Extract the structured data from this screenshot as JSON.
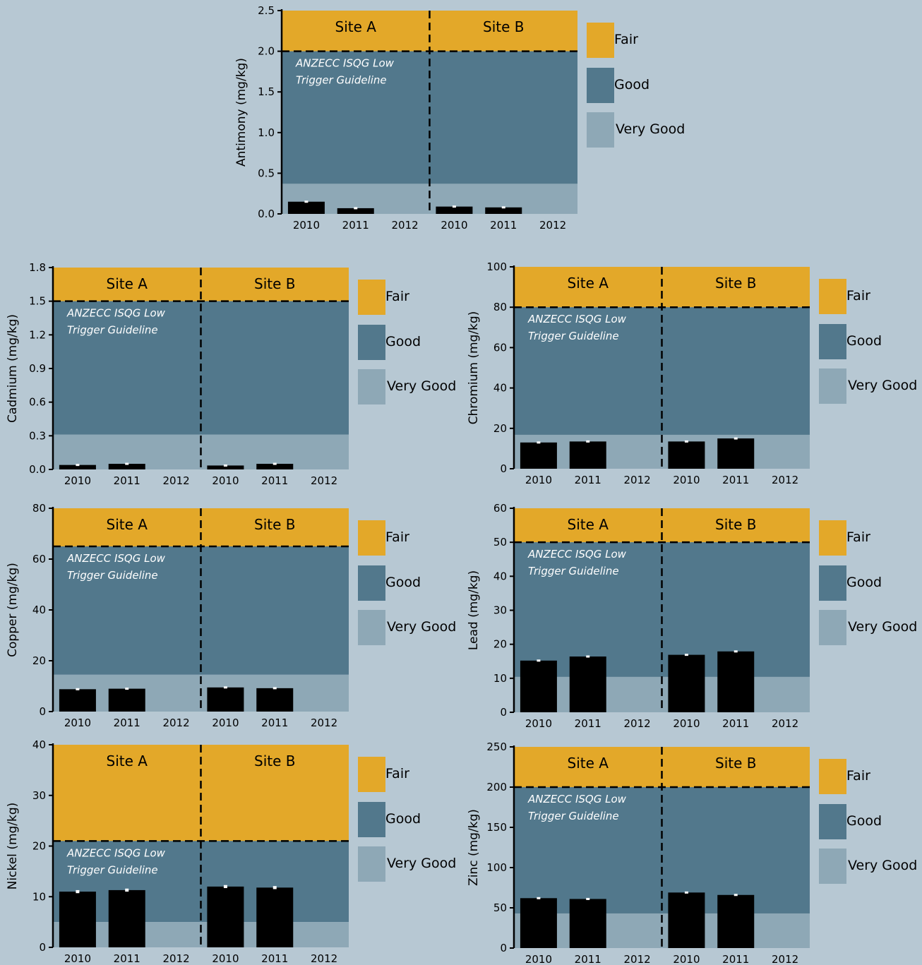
{
  "colors": {
    "background": "#b7c8d3",
    "fair": "#e3a829",
    "good": "#52788c",
    "very_good": "#8ea8b6",
    "bar": "#000000",
    "error_bar": "#ffffff"
  },
  "legend": {
    "fair": "Fair",
    "good": "Good",
    "very_good": "Very Good"
  },
  "guideline_label": [
    "ANZECC ISQG Low",
    "Trigger Guideline"
  ],
  "chart_data": [
    {
      "type": "bar",
      "ylabel": "Antimony (mg/kg)",
      "ylim": [
        0,
        2.5
      ],
      "yticks": [
        "0.0",
        "0.5",
        "1.0",
        "1.5",
        "2.0",
        "2.5"
      ],
      "sites": [
        "Site A",
        "Site B"
      ],
      "categories": [
        "2010",
        "2011",
        "2012"
      ],
      "series": [
        {
          "site": "Site A",
          "values": [
            0.15,
            0.07,
            null
          ],
          "errors": [
            0.01,
            0.01,
            null
          ]
        },
        {
          "site": "Site B",
          "values": [
            0.09,
            0.08,
            null
          ],
          "errors": [
            0.005,
            0.005,
            null
          ]
        }
      ],
      "thresholds": {
        "very_good_max": 0.37,
        "good_max": 2.0
      },
      "guideline": 2.0
    },
    {
      "type": "bar",
      "ylabel": "Cadmium (mg/kg)",
      "ylim": [
        0,
        1.8
      ],
      "yticks": [
        "0.0",
        "0.3",
        "0.6",
        "0.9",
        "1.2",
        "1.5",
        "1.8"
      ],
      "sites": [
        "Site A",
        "Site B"
      ],
      "categories": [
        "2010",
        "2011",
        "2012"
      ],
      "series": [
        {
          "site": "Site A",
          "values": [
            0.04,
            0.05,
            null
          ],
          "errors": [
            0.003,
            0.003,
            null
          ]
        },
        {
          "site": "Site B",
          "values": [
            0.035,
            0.05,
            null
          ],
          "errors": [
            0.003,
            0.003,
            null
          ]
        }
      ],
      "thresholds": {
        "very_good_max": 0.31,
        "good_max": 1.5
      },
      "guideline": 1.5
    },
    {
      "type": "bar",
      "ylabel": "Chromium (mg/kg)",
      "ylim": [
        0,
        100
      ],
      "yticks": [
        "0",
        "20",
        "40",
        "60",
        "80",
        "100"
      ],
      "sites": [
        "Site A",
        "Site B"
      ],
      "categories": [
        "2010",
        "2011",
        "2012"
      ],
      "series": [
        {
          "site": "Site A",
          "values": [
            13,
            13.5,
            null
          ],
          "errors": [
            0.4,
            0.4,
            null
          ]
        },
        {
          "site": "Site B",
          "values": [
            13.5,
            15,
            null
          ],
          "errors": [
            0.4,
            0.4,
            null
          ]
        }
      ],
      "thresholds": {
        "very_good_max": 16.8,
        "good_max": 80
      },
      "guideline": 80
    },
    {
      "type": "bar",
      "ylabel": "Copper (mg/kg)",
      "ylim": [
        0,
        80
      ],
      "yticks": [
        "0",
        "20",
        "40",
        "60",
        "80"
      ],
      "sites": [
        "Site A",
        "Site B"
      ],
      "categories": [
        "2010",
        "2011",
        "2012"
      ],
      "series": [
        {
          "site": "Site A",
          "values": [
            8.8,
            9,
            null
          ],
          "errors": [
            0.3,
            0.3,
            null
          ]
        },
        {
          "site": "Site B",
          "values": [
            9.5,
            9.2,
            null
          ],
          "errors": [
            0.3,
            0.3,
            null
          ]
        }
      ],
      "thresholds": {
        "very_good_max": 14.5,
        "good_max": 65
      },
      "guideline": 65
    },
    {
      "type": "bar",
      "ylabel": "Lead (mg/kg)",
      "ylim": [
        0,
        60
      ],
      "yticks": [
        "0",
        "10",
        "20",
        "30",
        "40",
        "50",
        "60"
      ],
      "sites": [
        "Site A",
        "Site B"
      ],
      "categories": [
        "2010",
        "2011",
        "2012"
      ],
      "series": [
        {
          "site": "Site A",
          "values": [
            15.2,
            16.4,
            null
          ],
          "errors": [
            0.3,
            0.3,
            null
          ]
        },
        {
          "site": "Site B",
          "values": [
            16.9,
            17.9,
            null
          ],
          "errors": [
            0.3,
            0.3,
            null
          ]
        }
      ],
      "thresholds": {
        "very_good_max": 10.4,
        "good_max": 50
      },
      "guideline": 50
    },
    {
      "type": "bar",
      "ylabel": "Nickel (mg/kg)",
      "ylim": [
        0,
        40
      ],
      "yticks": [
        "0",
        "10",
        "20",
        "30",
        "40"
      ],
      "sites": [
        "Site A",
        "Site B"
      ],
      "categories": [
        "2010",
        "2011",
        "2012"
      ],
      "series": [
        {
          "site": "Site A",
          "values": [
            11,
            11.3,
            null
          ],
          "errors": [
            0.3,
            0.3,
            null
          ]
        },
        {
          "site": "Site B",
          "values": [
            12,
            11.8,
            null
          ],
          "errors": [
            0.3,
            0.3,
            null
          ]
        }
      ],
      "thresholds": {
        "very_good_max": 5,
        "good_max": 21
      },
      "guideline": 21
    },
    {
      "type": "bar",
      "ylabel": "Zinc  (mg/kg)",
      "ylim": [
        0,
        250
      ],
      "yticks": [
        "0",
        "50",
        "100",
        "150",
        "200",
        "250"
      ],
      "sites": [
        "Site A",
        "Site B"
      ],
      "categories": [
        "2010",
        "2011",
        "2012"
      ],
      "series": [
        {
          "site": "Site A",
          "values": [
            62,
            61,
            null
          ],
          "errors": [
            1,
            1,
            null
          ]
        },
        {
          "site": "Site B",
          "values": [
            69,
            66,
            null
          ],
          "errors": [
            1.2,
            1.2,
            null
          ]
        }
      ],
      "thresholds": {
        "very_good_max": 43,
        "good_max": 200
      },
      "guideline": 200
    }
  ]
}
